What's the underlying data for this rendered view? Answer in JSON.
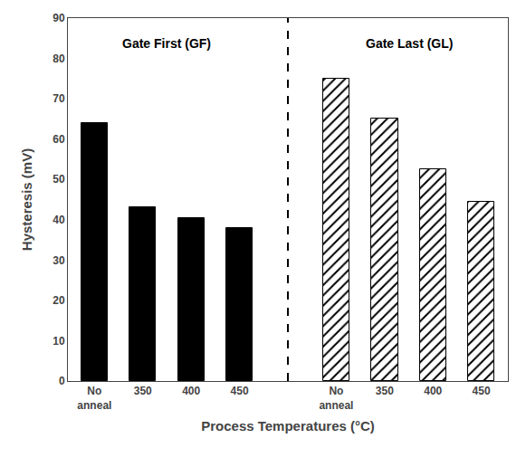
{
  "chart_data": {
    "type": "bar",
    "xlabel": "Process Temperatures (°C)",
    "ylabel": "Hysteresis (mV)",
    "series": [
      {
        "name": "Gate First (GF)",
        "color": "#000000",
        "categories": [
          "No\nanneal",
          "350",
          "400",
          "450"
        ],
        "values": [
          64,
          43,
          40.5,
          38
        ]
      },
      {
        "name": "Gate Last (GL)",
        "color": "#000000",
        "marker": "hatch",
        "categories": [
          "No\nanneal",
          "350",
          "400",
          "450"
        ],
        "values": [
          75,
          65,
          52.5,
          44.5
        ]
      }
    ],
    "ylim": [
      0,
      90
    ],
    "yticks": [
      0,
      10,
      20,
      30,
      40,
      50,
      60,
      70,
      80,
      90
    ],
    "grid": false,
    "legend": false
  }
}
